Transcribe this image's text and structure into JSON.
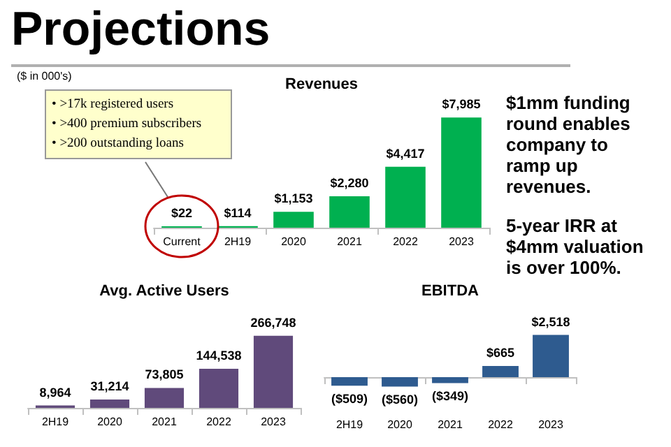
{
  "chart_data": [
    {
      "type": "other",
      "title": "Projections",
      "annotations": [
        "$1mm funding round enables company to ramp up revenues.",
        "5-year IRR at $4mm valuation is over 100%."
      ]
    },
    {
      "type": "bar",
      "title": "Revenues",
      "annotations": [
        "($ in 000's)",
        "• >17k registered users",
        "• >400 premium subscribers",
        "• >200 outstanding loans"
      ],
      "categories": [
        "Current",
        "2H19",
        "2020",
        "2021",
        "2022",
        "2023"
      ],
      "values": [
        22,
        114,
        1153,
        2280,
        4417,
        7985
      ],
      "value_labels": [
        "$22",
        "$114",
        "$1,153",
        "$2,280",
        "$4,417",
        "$7,985"
      ],
      "color": "#00b050",
      "tick_labels": "x"
    },
    {
      "type": "bar",
      "title": "Avg. Active Users",
      "categories": [
        "2H19",
        "2020",
        "2021",
        "2022",
        "2023"
      ],
      "values": [
        8964,
        31214,
        73805,
        144538,
        266748
      ],
      "value_labels": [
        "8,964",
        "31,214",
        "73,805",
        "144,538",
        "266,748"
      ],
      "color": "#604a7b",
      "tick_labels": "x"
    },
    {
      "type": "bar",
      "title": "EBITDA",
      "categories": [
        "2H19",
        "2020",
        "2021",
        "2022",
        "2023"
      ],
      "values": [
        -509,
        -560,
        -349,
        665,
        2518
      ],
      "value_labels": [
        "($509)",
        "($560)",
        "($349)",
        "$665",
        "$2,518"
      ],
      "color": "#2e5b8f",
      "tick_labels": "x"
    }
  ]
}
